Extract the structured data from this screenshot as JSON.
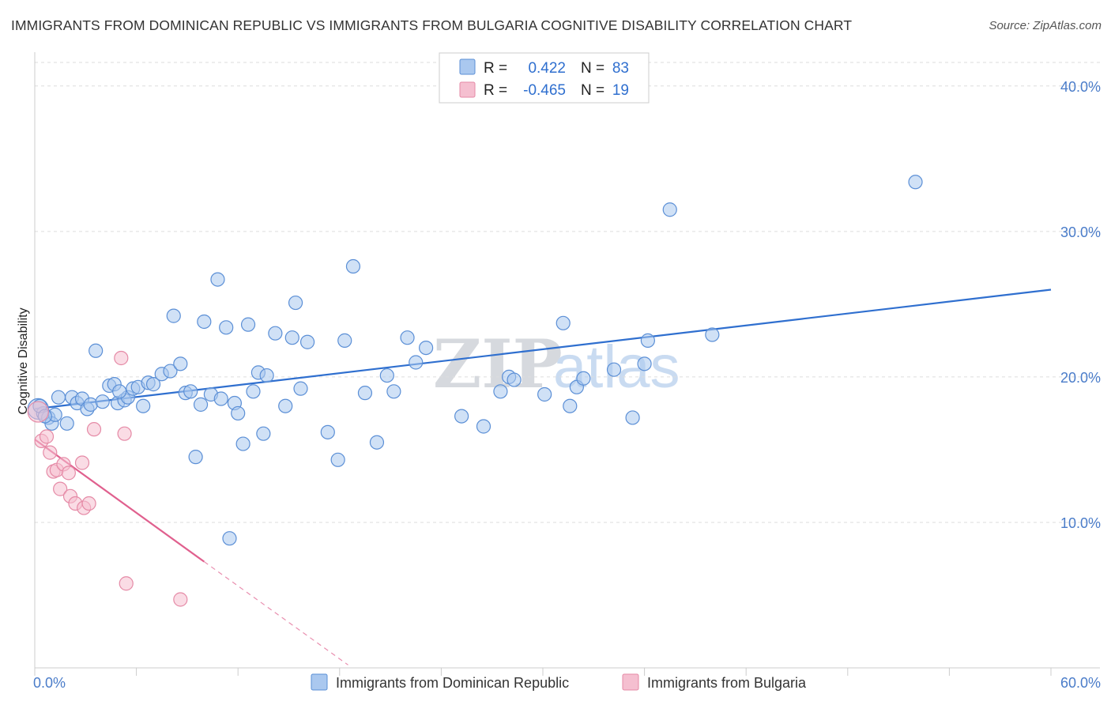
{
  "title": "IMMIGRANTS FROM DOMINICAN REPUBLIC VS IMMIGRANTS FROM BULGARIA COGNITIVE DISABILITY CORRELATION CHART",
  "source": "Source: ZipAtlas.com",
  "watermark": {
    "zip": "ZIP",
    "atlas": "atlas"
  },
  "colors": {
    "blue_fill": "#aac8ef",
    "blue_stroke": "#5b8fd6",
    "blue_line": "#2f6fcf",
    "pink_fill": "#f5bfd0",
    "pink_stroke": "#e58aa6",
    "pink_line": "#e0608e",
    "axis_text": "#4a7cc9",
    "grid": "#dddddd"
  },
  "legend": {
    "rows": [
      {
        "r_label": "R =",
        "r_value": "0.422",
        "n_label": "N =",
        "n_value": "83"
      },
      {
        "r_label": "R =",
        "r_value": "-0.465",
        "n_label": "N =",
        "n_value": "19"
      }
    ]
  },
  "chart_data": {
    "type": "scatter",
    "title": "IMMIGRANTS FROM DOMINICAN REPUBLIC VS IMMIGRANTS FROM BULGARIA COGNITIVE DISABILITY CORRELATION CHART",
    "xlabel": "",
    "ylabel": "Cognitive Disability",
    "xlim": [
      0,
      60
    ],
    "ylim": [
      0,
      42
    ],
    "x_tick_labels": [
      "0.0%",
      "60.0%"
    ],
    "y_ticks": [
      10,
      20,
      30,
      40
    ],
    "y_tick_labels": [
      "10.0%",
      "20.0%",
      "30.0%",
      "40.0%"
    ],
    "grid": true,
    "series": [
      {
        "name": "Immigrants from Dominican Republic",
        "color": "#aac8ef",
        "trend": {
          "x0": 0,
          "y0": 17.8,
          "x1": 60,
          "y1": 26.0
        },
        "points": [
          [
            0.2,
            17.8
          ],
          [
            0.5,
            17.5
          ],
          [
            0.8,
            17.2
          ],
          [
            1.0,
            16.8
          ],
          [
            1.2,
            17.4
          ],
          [
            1.4,
            18.6
          ],
          [
            1.9,
            16.8
          ],
          [
            2.2,
            18.6
          ],
          [
            2.5,
            18.2
          ],
          [
            2.8,
            18.5
          ],
          [
            3.1,
            17.8
          ],
          [
            3.3,
            18.1
          ],
          [
            3.6,
            21.8
          ],
          [
            4.0,
            18.3
          ],
          [
            4.4,
            19.4
          ],
          [
            4.7,
            19.5
          ],
          [
            4.9,
            18.2
          ],
          [
            5.3,
            18.4
          ],
          [
            5.5,
            18.6
          ],
          [
            5.8,
            19.2
          ],
          [
            6.1,
            19.3
          ],
          [
            6.4,
            18.0
          ],
          [
            6.7,
            19.6
          ],
          [
            7.0,
            19.5
          ],
          [
            7.5,
            20.2
          ],
          [
            8.0,
            20.4
          ],
          [
            8.2,
            24.2
          ],
          [
            8.6,
            20.9
          ],
          [
            8.9,
            18.9
          ],
          [
            9.2,
            19.0
          ],
          [
            9.5,
            14.5
          ],
          [
            9.8,
            18.1
          ],
          [
            10.0,
            23.8
          ],
          [
            10.4,
            18.8
          ],
          [
            10.8,
            26.7
          ],
          [
            11.0,
            18.5
          ],
          [
            11.3,
            23.4
          ],
          [
            11.8,
            18.2
          ],
          [
            12.0,
            17.5
          ],
          [
            12.3,
            15.4
          ],
          [
            12.6,
            23.6
          ],
          [
            12.9,
            19.0
          ],
          [
            13.2,
            20.3
          ],
          [
            13.5,
            16.1
          ],
          [
            13.7,
            20.1
          ],
          [
            14.2,
            23.0
          ],
          [
            14.8,
            18.0
          ],
          [
            15.2,
            22.7
          ],
          [
            15.4,
            25.1
          ],
          [
            15.7,
            19.2
          ],
          [
            16.1,
            22.4
          ],
          [
            17.3,
            16.2
          ],
          [
            17.9,
            14.3
          ],
          [
            18.3,
            22.5
          ],
          [
            18.8,
            27.6
          ],
          [
            19.5,
            18.9
          ],
          [
            20.2,
            15.5
          ],
          [
            20.8,
            20.1
          ],
          [
            21.2,
            19.0
          ],
          [
            22.0,
            22.7
          ],
          [
            22.5,
            21.0
          ],
          [
            23.1,
            22.0
          ],
          [
            25.2,
            17.3
          ],
          [
            26.5,
            16.6
          ],
          [
            27.5,
            19.0
          ],
          [
            28.0,
            20.0
          ],
          [
            28.3,
            19.8
          ],
          [
            30.1,
            18.8
          ],
          [
            31.2,
            23.7
          ],
          [
            31.6,
            18.0
          ],
          [
            32.0,
            19.3
          ],
          [
            32.4,
            19.9
          ],
          [
            34.2,
            20.5
          ],
          [
            35.3,
            17.2
          ],
          [
            36.0,
            20.9
          ],
          [
            36.2,
            22.5
          ],
          [
            37.5,
            31.5
          ],
          [
            40.0,
            22.9
          ],
          [
            52.0,
            33.4
          ],
          [
            0.3,
            18.0
          ],
          [
            0.6,
            17.3
          ],
          [
            11.5,
            8.9
          ],
          [
            5.0,
            19.0
          ]
        ]
      },
      {
        "name": "Immigrants from Bulgaria",
        "color": "#f5bfd0",
        "trend": {
          "x0": 0,
          "y0": 15.7,
          "x1": 10,
          "y1": 7.3,
          "dash_x1": 18.5,
          "dash_y1": 0.2
        },
        "points": [
          [
            0.4,
            15.6
          ],
          [
            0.7,
            15.9
          ],
          [
            0.9,
            14.8
          ],
          [
            1.1,
            13.5
          ],
          [
            1.3,
            13.6
          ],
          [
            1.5,
            12.3
          ],
          [
            1.7,
            14.0
          ],
          [
            2.0,
            13.4
          ],
          [
            2.1,
            11.8
          ],
          [
            2.4,
            11.3
          ],
          [
            2.8,
            14.1
          ],
          [
            2.9,
            11.0
          ],
          [
            3.2,
            11.3
          ],
          [
            3.5,
            16.4
          ],
          [
            5.1,
            21.3
          ],
          [
            5.3,
            16.1
          ],
          [
            5.4,
            5.8
          ],
          [
            8.6,
            4.7
          ],
          [
            0.2,
            17.6
          ]
        ]
      }
    ]
  },
  "bottom_legend": {
    "items": [
      "Immigrants from Dominican Republic",
      "Immigrants from Bulgaria"
    ]
  }
}
